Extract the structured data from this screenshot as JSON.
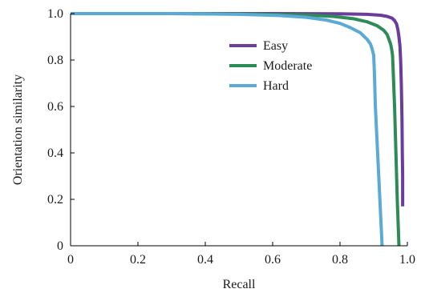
{
  "chart_data": {
    "type": "line",
    "title": "",
    "xlabel": "Recall",
    "ylabel": "Orientation similarity",
    "xlim": [
      0,
      1
    ],
    "ylim": [
      0,
      1
    ],
    "x_ticks": [
      0,
      0.2,
      0.4,
      0.6,
      0.8,
      1.0
    ],
    "x_tick_labels": [
      "0",
      "0.2",
      "0.4",
      "0.6",
      "0.8",
      "1.0"
    ],
    "y_ticks": [
      0,
      0.2,
      0.4,
      0.6,
      0.8,
      1.0
    ],
    "y_tick_labels": [
      "0",
      "0.2",
      "0.4",
      "0.6",
      "0.8",
      "1.0"
    ],
    "grid": false,
    "legend_position": "top-right",
    "series": [
      {
        "name": "Easy",
        "color": "#6a3d9a",
        "x": [
          0,
          0.3,
          0.6,
          0.8,
          0.88,
          0.92,
          0.94,
          0.955,
          0.962,
          0.968,
          0.972,
          0.975,
          0.978,
          0.98,
          0.982,
          0.984,
          0.985,
          0.986,
          0.986
        ],
        "y": [
          1.0,
          1.0,
          1.0,
          0.999,
          0.997,
          0.993,
          0.988,
          0.98,
          0.97,
          0.955,
          0.93,
          0.9,
          0.86,
          0.8,
          0.7,
          0.55,
          0.4,
          0.3,
          0.17
        ]
      },
      {
        "name": "Moderate",
        "color": "#2e8b57",
        "x": [
          0,
          0.3,
          0.55,
          0.7,
          0.78,
          0.84,
          0.88,
          0.91,
          0.93,
          0.94,
          0.945,
          0.95,
          0.953,
          0.956,
          0.958,
          0.962,
          0.966,
          0.97,
          0.975
        ],
        "y": [
          1.0,
          1.0,
          0.998,
          0.994,
          0.988,
          0.978,
          0.965,
          0.948,
          0.928,
          0.91,
          0.89,
          0.87,
          0.85,
          0.82,
          0.75,
          0.6,
          0.4,
          0.2,
          0.0
        ]
      },
      {
        "name": "Hard",
        "color": "#5aaad5",
        "x": [
          0,
          0.3,
          0.5,
          0.62,
          0.7,
          0.76,
          0.8,
          0.83,
          0.86,
          0.88,
          0.89,
          0.895,
          0.9,
          0.902,
          0.905,
          0.91,
          0.915,
          0.92,
          0.925
        ],
        "y": [
          1.0,
          1.0,
          0.997,
          0.992,
          0.984,
          0.972,
          0.958,
          0.94,
          0.918,
          0.89,
          0.87,
          0.85,
          0.82,
          0.75,
          0.6,
          0.45,
          0.3,
          0.15,
          0.0
        ]
      }
    ]
  }
}
